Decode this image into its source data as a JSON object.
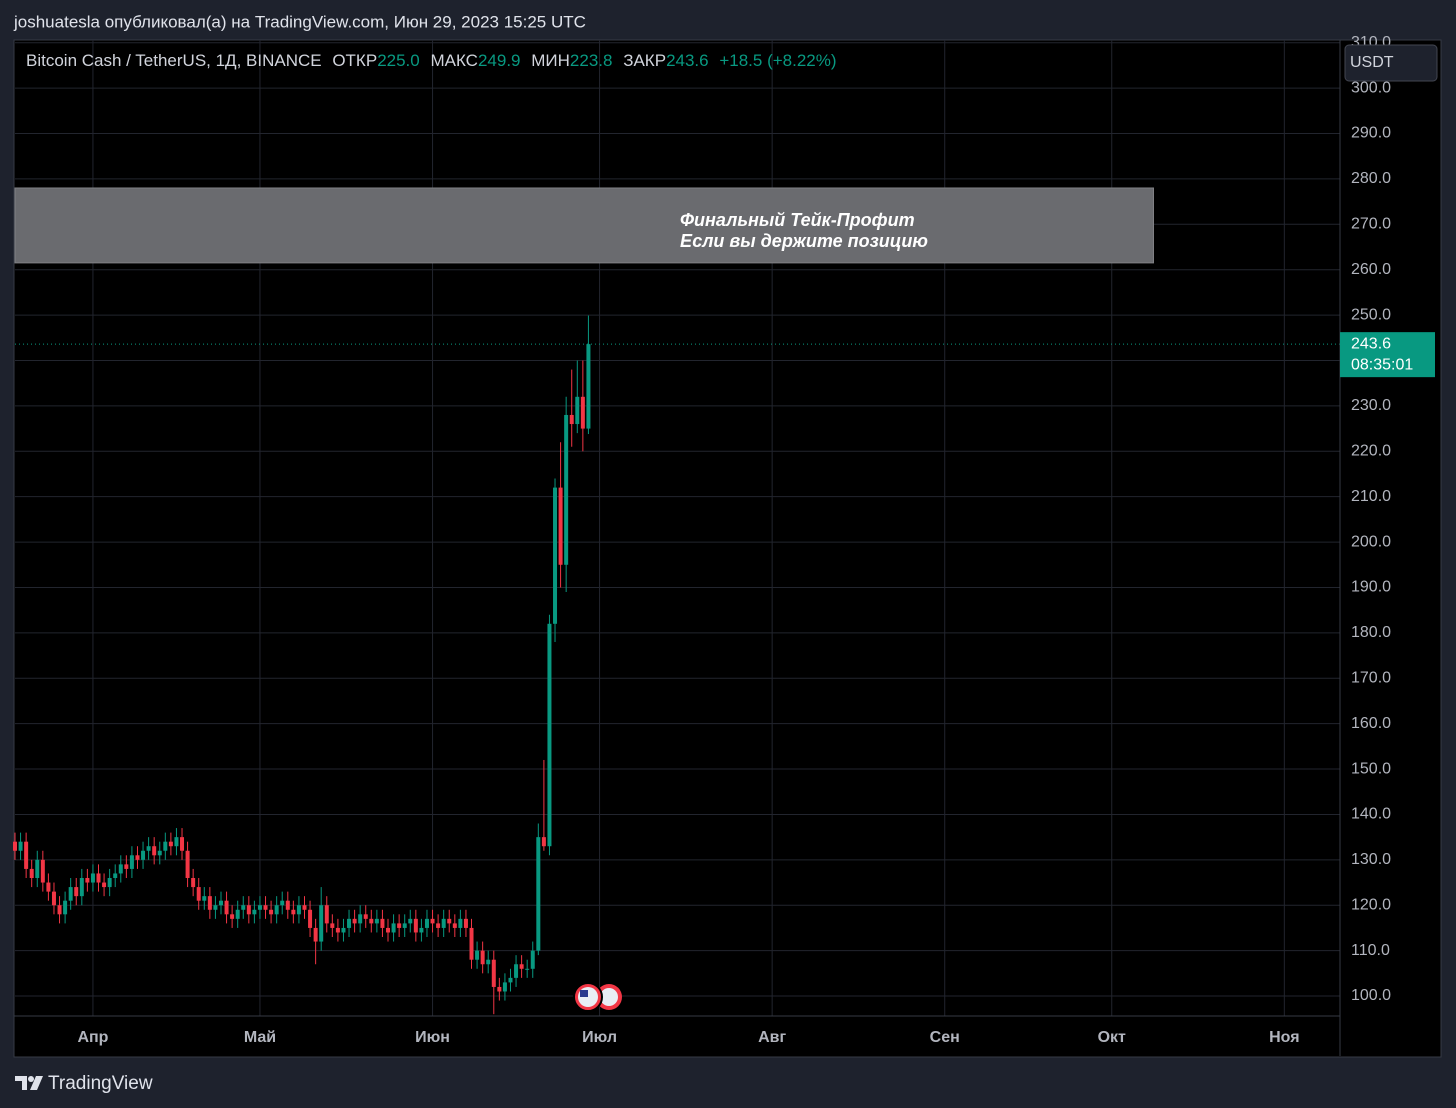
{
  "header": {
    "text": "joshuatesla опубликовал(а) на TradingView.com, Июн 29, 2023 15:25 UTC"
  },
  "footer": {
    "brand": "TradingView"
  },
  "chart_data": {
    "type": "candlestick",
    "legend": {
      "symbol": "Bitcoin Cash / TetherUS, 1Д, BINANCE",
      "open_label": "ОТКР",
      "open": "225.0",
      "high_label": "МАКС",
      "high": "249.9",
      "low_label": "МИН",
      "low": "223.8",
      "close_label": "ЗАКР",
      "close": "243.6",
      "change": "+18.5 (+8.22%)"
    },
    "currency": "USDT",
    "last_price_label": "243.6",
    "countdown": "08:35:01",
    "up_color": "#089981",
    "down_color": "#f23645",
    "grid": true,
    "x": [
      0,
      1,
      2,
      3,
      4,
      5,
      6,
      7,
      8,
      9,
      10,
      11,
      12,
      13,
      14,
      15,
      16,
      17,
      18,
      19,
      20,
      21,
      22,
      23,
      24,
      25,
      26,
      27,
      28,
      29,
      30,
      31,
      32,
      33,
      34,
      35,
      36,
      37,
      38,
      39,
      40,
      41,
      42,
      43,
      44,
      45,
      46,
      47,
      48,
      49,
      50,
      51,
      52,
      53,
      54,
      55,
      56,
      57,
      58,
      59,
      60,
      61,
      62,
      63,
      64,
      65,
      66,
      67,
      68,
      69,
      70,
      71,
      72,
      73,
      74,
      75,
      76,
      77,
      78,
      79,
      80,
      81,
      82,
      83,
      84,
      85,
      86,
      87,
      88,
      89,
      90,
      91,
      92,
      93,
      94,
      95,
      96,
      97,
      98,
      99,
      100,
      101,
      102,
      103
    ],
    "open": [
      134,
      132,
      134,
      128,
      126,
      130,
      125,
      123,
      120,
      118,
      121,
      124,
      122,
      126,
      125,
      127,
      125,
      124,
      126,
      127,
      129,
      128,
      131,
      130,
      132,
      133,
      131,
      132,
      134,
      133,
      135,
      132,
      126,
      124,
      121,
      122,
      119,
      120,
      121,
      118,
      117,
      119,
      120,
      118,
      119,
      120,
      119,
      118,
      120,
      121,
      119,
      118,
      120,
      119,
      115,
      112,
      120,
      116,
      115,
      114,
      115,
      117,
      116,
      118,
      117,
      116,
      117,
      115,
      114,
      116,
      115,
      116,
      117,
      114,
      115,
      117,
      116,
      115,
      117,
      116,
      115,
      117,
      115,
      108,
      110,
      107,
      108,
      102,
      101,
      103,
      104,
      107,
      106,
      106,
      110,
      135,
      133,
      182,
      212,
      195,
      228,
      226,
      232,
      225
    ],
    "high": [
      136,
      136,
      136,
      130,
      132,
      132,
      127,
      125,
      122,
      123,
      126,
      126,
      128,
      128,
      129,
      129,
      127,
      128,
      129,
      131,
      131,
      133,
      133,
      134,
      135,
      135,
      134,
      136,
      136,
      137,
      137,
      134,
      128,
      126,
      124,
      124,
      122,
      123,
      123,
      120,
      121,
      122,
      122,
      121,
      122,
      122,
      121,
      122,
      123,
      123,
      121,
      122,
      122,
      121,
      117,
      124,
      122,
      118,
      117,
      117,
      119,
      119,
      120,
      120,
      119,
      119,
      119,
      117,
      118,
      118,
      118,
      119,
      119,
      117,
      119,
      119,
      118,
      119,
      119,
      118,
      119,
      119,
      117,
      112,
      112,
      110,
      110,
      104,
      105,
      106,
      109,
      109,
      108,
      112,
      138,
      152,
      184,
      214,
      222,
      232,
      238,
      240,
      240,
      249.9
    ],
    "low": [
      130,
      130,
      126,
      124,
      124,
      123,
      121,
      118,
      116,
      116,
      119,
      120,
      120,
      123,
      123,
      123,
      122,
      122,
      124,
      125,
      126,
      126,
      128,
      128,
      130,
      129,
      129,
      130,
      131,
      131,
      130,
      124,
      122,
      119,
      119,
      117,
      117,
      118,
      116,
      115,
      115,
      117,
      116,
      116,
      117,
      117,
      116,
      116,
      118,
      117,
      116,
      116,
      117,
      113,
      107,
      110,
      114,
      113,
      112,
      112,
      113,
      114,
      114,
      115,
      114,
      114,
      113,
      112,
      112,
      113,
      113,
      114,
      112,
      112,
      113,
      114,
      113,
      113,
      114,
      113,
      113,
      113,
      106,
      106,
      105,
      105,
      96,
      99,
      99,
      101,
      102,
      104,
      104,
      104,
      109,
      132,
      131,
      178,
      190,
      189,
      221,
      224,
      220,
      223.8
    ],
    "close": [
      132,
      134,
      128,
      126,
      130,
      125,
      123,
      120,
      118,
      121,
      124,
      122,
      126,
      125,
      127,
      125,
      124,
      126,
      127,
      129,
      128,
      131,
      130,
      132,
      133,
      131,
      132,
      134,
      133,
      135,
      132,
      126,
      124,
      121,
      122,
      119,
      120,
      121,
      118,
      117,
      119,
      120,
      118,
      119,
      120,
      119,
      118,
      120,
      121,
      119,
      118,
      120,
      119,
      115,
      112,
      120,
      116,
      115,
      114,
      115,
      117,
      116,
      118,
      117,
      116,
      117,
      115,
      114,
      116,
      115,
      116,
      117,
      114,
      115,
      117,
      116,
      115,
      117,
      116,
      115,
      117,
      115,
      108,
      110,
      107,
      108,
      102,
      101,
      103,
      104,
      107,
      106,
      106,
      110,
      135,
      133,
      182,
      212,
      195,
      228,
      226,
      232,
      225,
      243.6
    ],
    "xlim": [
      0,
      238
    ],
    "xticks": [
      {
        "value": 14,
        "label": "Апр"
      },
      {
        "value": 44,
        "label": "Май"
      },
      {
        "value": 75,
        "label": "Июн"
      },
      {
        "value": 105,
        "label": "Июл"
      },
      {
        "value": 136,
        "label": "Авг"
      },
      {
        "value": 167,
        "label": "Сен"
      },
      {
        "value": 197,
        "label": "Окт"
      },
      {
        "value": 228,
        "label": "Ноя"
      }
    ],
    "ylim": [
      95.6,
      310.6
    ],
    "yticks": [
      {
        "value": 100,
        "label": "100.0"
      },
      {
        "value": 110,
        "label": "110.0"
      },
      {
        "value": 120,
        "label": "120.0"
      },
      {
        "value": 130,
        "label": "130.0"
      },
      {
        "value": 140,
        "label": "140.0"
      },
      {
        "value": 150,
        "label": "150.0"
      },
      {
        "value": 160,
        "label": "160.0"
      },
      {
        "value": 170,
        "label": "170.0"
      },
      {
        "value": 180,
        "label": "180.0"
      },
      {
        "value": 190,
        "label": "190.0"
      },
      {
        "value": 200,
        "label": "200.0"
      },
      {
        "value": 210,
        "label": "210.0"
      },
      {
        "value": 220,
        "label": "220.0"
      },
      {
        "value": 230,
        "label": "230.0"
      },
      {
        "value": 240,
        "label": "240.0"
      },
      {
        "value": 250,
        "label": "250.0"
      },
      {
        "value": 260,
        "label": "260.0"
      },
      {
        "value": 270,
        "label": "270.0"
      },
      {
        "value": 280,
        "label": "280.0"
      },
      {
        "value": 290,
        "label": "290.0"
      },
      {
        "value": 300,
        "label": "300.0"
      },
      {
        "value": 310,
        "label": "310.0"
      }
    ],
    "annotation": {
      "lines": [
        "Финальный Тейк-Профит",
        "Если вы держите позицию"
      ],
      "xlim": [
        0,
        204.5
      ],
      "ylim": [
        261.5,
        278
      ]
    }
  }
}
